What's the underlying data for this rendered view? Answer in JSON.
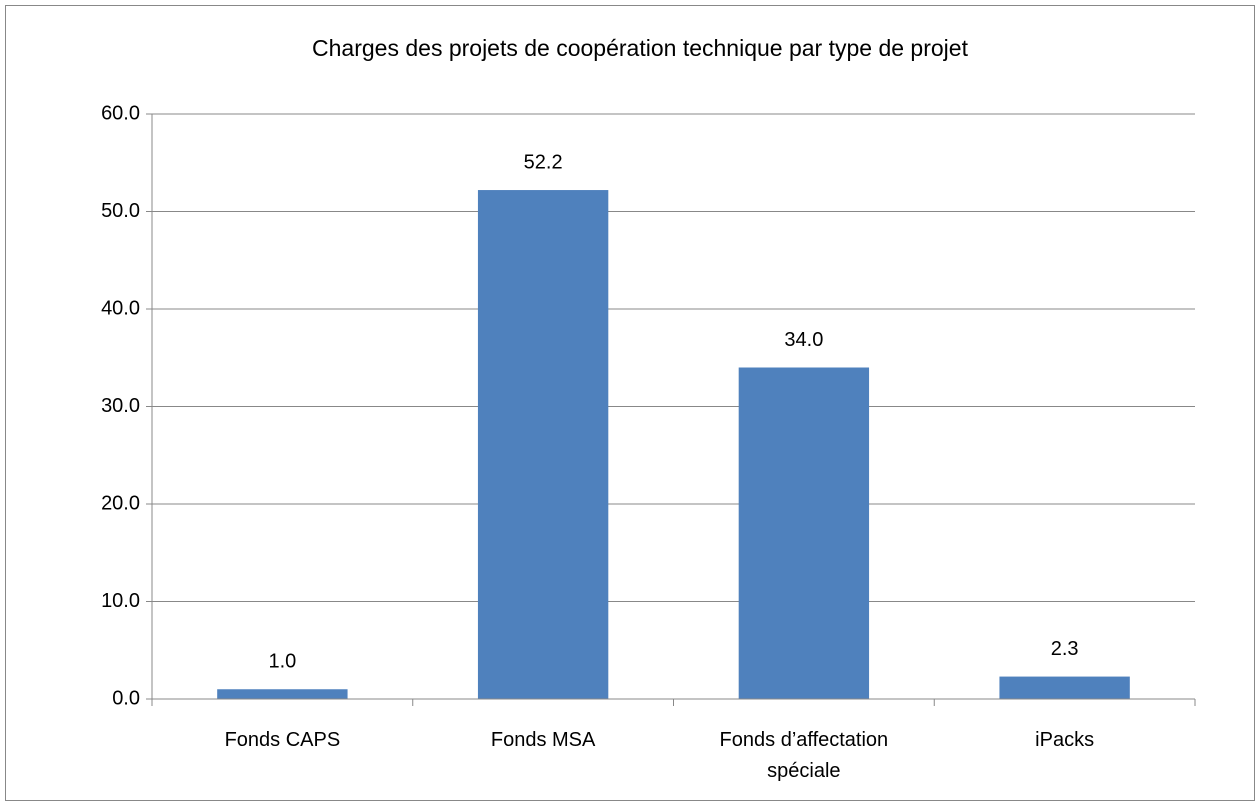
{
  "chart_data": {
    "type": "bar",
    "title": "Charges des projets de coopération technique par type de projet",
    "categories": [
      "Fonds CAPS",
      "Fonds MSA",
      "Fonds d’affectation spéciale",
      "iPacks"
    ],
    "values": [
      1.0,
      52.2,
      34.0,
      2.3
    ],
    "value_labels": [
      "1.0",
      "52.2",
      "34.0",
      "2.3"
    ],
    "color": "#4f81bd",
    "ylim": [
      0,
      60
    ],
    "yticks": [
      {
        "value": 0,
        "label": "0.0"
      },
      {
        "value": 10,
        "label": "10.0"
      },
      {
        "value": 20,
        "label": "20.0"
      },
      {
        "value": 30,
        "label": "30.0"
      },
      {
        "value": 40,
        "label": "40.0"
      },
      {
        "value": 50,
        "label": "50.0"
      },
      {
        "value": 60,
        "label": "60.0"
      }
    ],
    "grid": true
  }
}
